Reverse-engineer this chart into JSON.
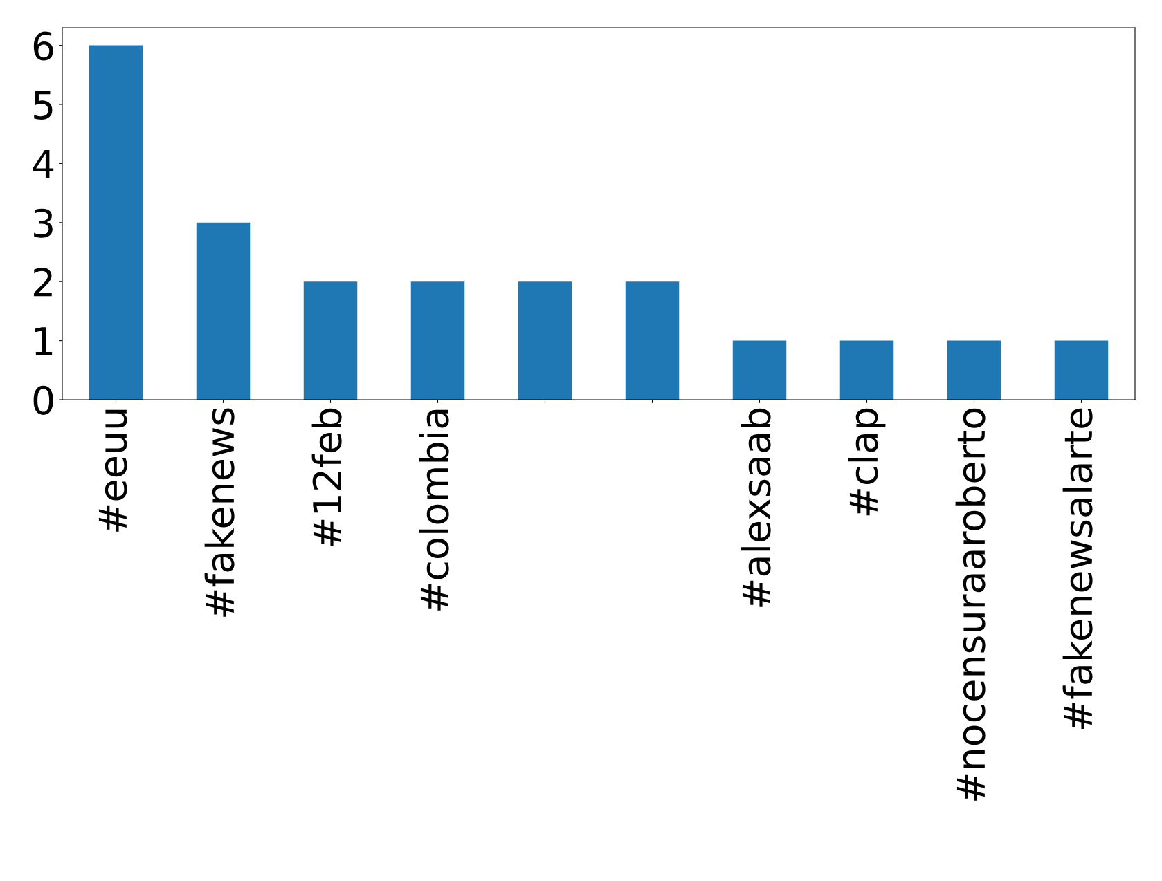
{
  "chart_data": {
    "type": "bar",
    "categories": [
      "#eeuu",
      "#fakenews",
      "#12feb",
      "#colombia",
      null,
      null,
      "#alexsaab",
      "#clap",
      "#nocensuraaroberto",
      "#fakenewsalarte"
    ],
    "values": [
      6,
      3,
      2,
      2,
      2,
      2,
      1,
      1,
      1,
      1
    ],
    "color": "#1f77b4",
    "ylim": [
      0,
      6.3
    ],
    "yticks": [
      0,
      1,
      2,
      3,
      4,
      5,
      6
    ],
    "grid": false,
    "legend": false
  }
}
